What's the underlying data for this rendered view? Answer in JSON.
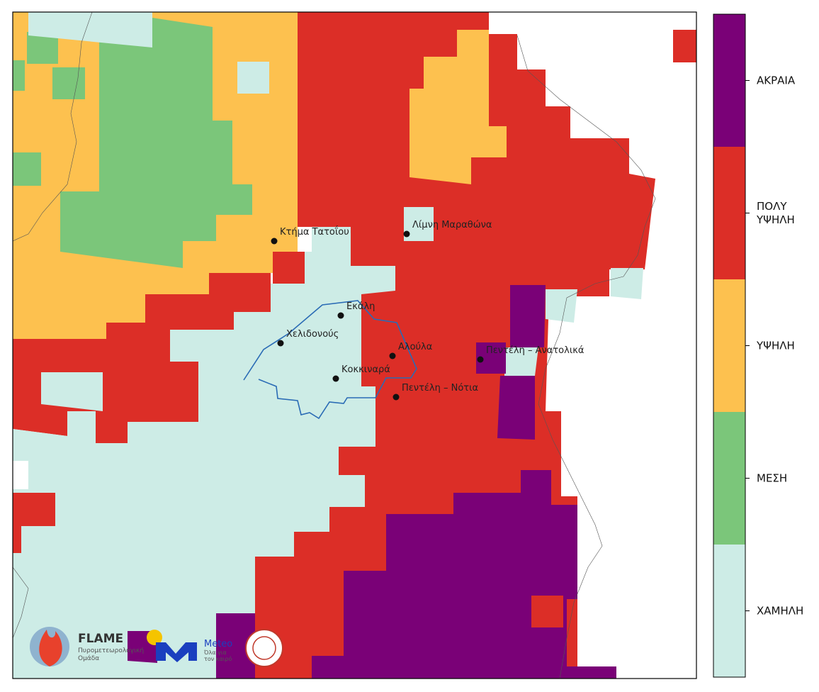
{
  "map": {
    "places": [
      "Κτήμα Τατοΐου",
      "Λίμνη Μαραθώνα",
      "Εκάλη",
      "Χελιδονούς",
      "Αλούλα",
      "Πεντέλη – Ανατολικά",
      "Κοκκιναρά",
      "Πεντέλη – Νότια"
    ],
    "legend": {
      "levels": [
        {
          "label": "ΧΑΜΗΛΗ",
          "color": "#cdece6"
        },
        {
          "label": "ΜΕΣΗ",
          "color": "#7bc67a"
        },
        {
          "label": "ΥΨΗΛΗ",
          "color": "#fdc14f"
        },
        {
          "label": "ΠΟΛΥ\nΥΨΗΛΗ",
          "color": "#dc2e27"
        },
        {
          "label": "ΑΚΡΑΙΑ",
          "color": "#7a0177"
        }
      ]
    }
  },
  "logos": {
    "flame": "FLAME",
    "flame_sub": "Πυρομετεωρολογική\nΟμάδα",
    "meteo": "Meteo",
    "meteo_sub": "Όλα για\nτον καιρό"
  }
}
